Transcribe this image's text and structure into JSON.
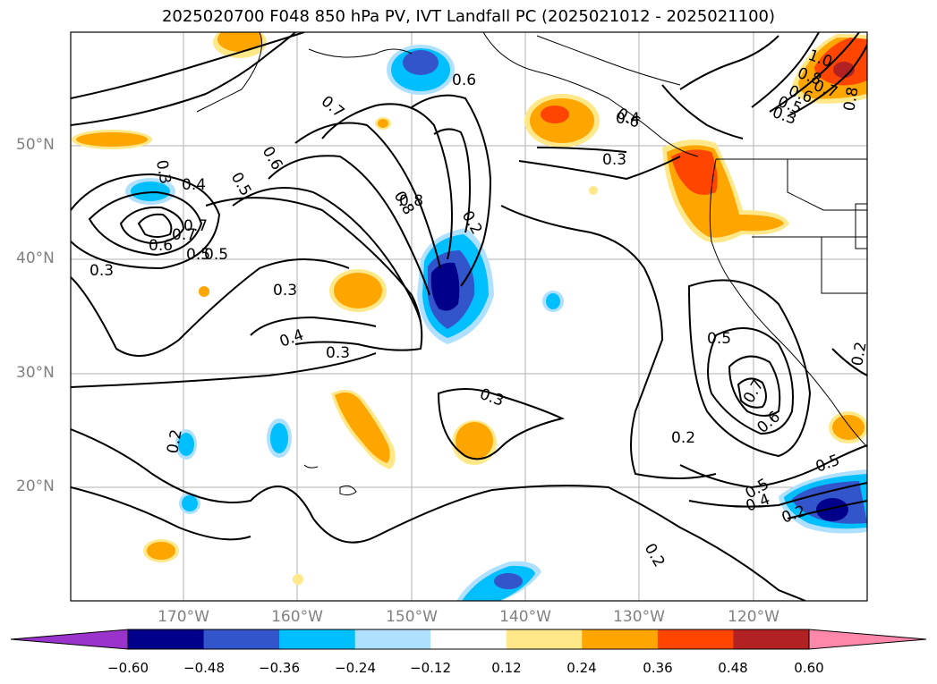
{
  "title": "2025020700 F048 850 hPa PV, IVT Landfall PC (2025021012 - 2025021100)",
  "lat_labels": [
    "50°N",
    "40°N",
    "30°N",
    "20°N"
  ],
  "lon_labels": [
    "170°W",
    "160°W",
    "150°W",
    "140°W",
    "130°W",
    "120°W"
  ],
  "colorbar": {
    "colors": [
      "#9933cc",
      "#00008b",
      "#3355cc",
      "#00bfff",
      "#b0e0ff",
      "#ffffff",
      "#ffe88a",
      "#ffa500",
      "#ff4500",
      "#b22222",
      "#ff88aa"
    ],
    "tick_labels": [
      "−0.60",
      "−0.48",
      "−0.36",
      "−0.24",
      "−0.12",
      "0.12",
      "0.24",
      "0.36",
      "0.48",
      "0.60"
    ]
  },
  "contour_labels": [
    "0.3",
    "0.4",
    "0.5",
    "0.6",
    "0.7",
    "0.8",
    "0.6",
    "0.7",
    "0.5",
    "0.3",
    "0.6",
    "0.5",
    "0.7",
    "0.8",
    "0.2",
    "0.3",
    "0.4",
    "0.3",
    "0.3",
    "0.6",
    "0.4",
    "0.3",
    "1.0",
    "0.8",
    "0.7",
    "0.6",
    "0.5",
    "0.3",
    "0.8",
    "0.5",
    "0.7",
    "0.6",
    "0.2",
    "0.5",
    "0.4",
    "0.2",
    "0.5",
    "0.2",
    "0.2",
    "0.2"
  ]
}
